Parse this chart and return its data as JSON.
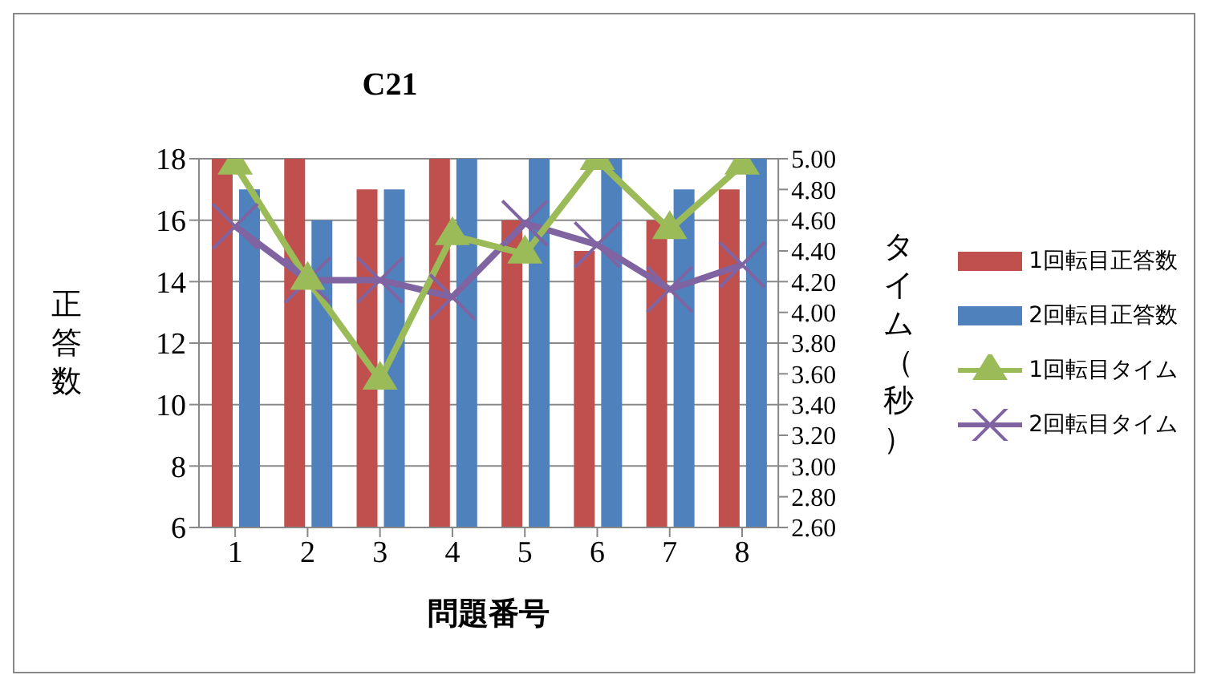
{
  "chart_data": {
    "type": "bar",
    "title": "C21",
    "xlabel": "問題番号",
    "ylabel": "正答数",
    "y2label": "タイム（秒）",
    "categories": [
      "1",
      "2",
      "3",
      "4",
      "5",
      "6",
      "7",
      "8"
    ],
    "series": [
      {
        "name": "1回転目正答数",
        "color": "#c0504d",
        "values": [
          18,
          18,
          17,
          18,
          16,
          15,
          16,
          17
        ]
      },
      {
        "name": "2回転目正答数",
        "color": "#4f81bd",
        "values": [
          17,
          16,
          17,
          18,
          18,
          18,
          17,
          18
        ]
      },
      {
        "name": "1回転目タイム",
        "type": "line",
        "axis": "y2",
        "marker": "triangle",
        "color": "#9bbb59",
        "values": [
          4.96,
          4.21,
          3.56,
          4.5,
          4.38,
          4.99,
          4.54,
          4.96
        ]
      },
      {
        "name": "2回転目タイム",
        "type": "line",
        "axis": "y2",
        "marker": "cross",
        "color": "#8064a2",
        "values": [
          4.56,
          4.21,
          4.21,
          4.1,
          4.58,
          4.44,
          4.15,
          4.31
        ]
      }
    ],
    "ylim": [
      6,
      18
    ],
    "yticks": [
      6,
      8,
      10,
      12,
      14,
      16,
      18
    ],
    "y2lim": [
      2.6,
      5
    ],
    "y2ticks": [
      {
        "value": 2.6,
        "label": "2.60"
      },
      {
        "value": 2.8,
        "label": "2.80"
      },
      {
        "value": 3,
        "label": "3.00"
      },
      {
        "value": 3.2,
        "label": "3.20"
      },
      {
        "value": 3.4,
        "label": "3.40"
      },
      {
        "value": 3.6,
        "label": "3.60"
      },
      {
        "value": 3.8,
        "label": "3.80"
      },
      {
        "value": 4,
        "label": "4.00"
      },
      {
        "value": 4.2,
        "label": "4.20"
      },
      {
        "value": 4.4,
        "label": "4.40"
      },
      {
        "value": 4.6,
        "label": "4.60"
      },
      {
        "value": 4.8,
        "label": "4.80"
      },
      {
        "value": 5,
        "label": "5.00"
      }
    ],
    "grid": "y",
    "legend": "right"
  }
}
